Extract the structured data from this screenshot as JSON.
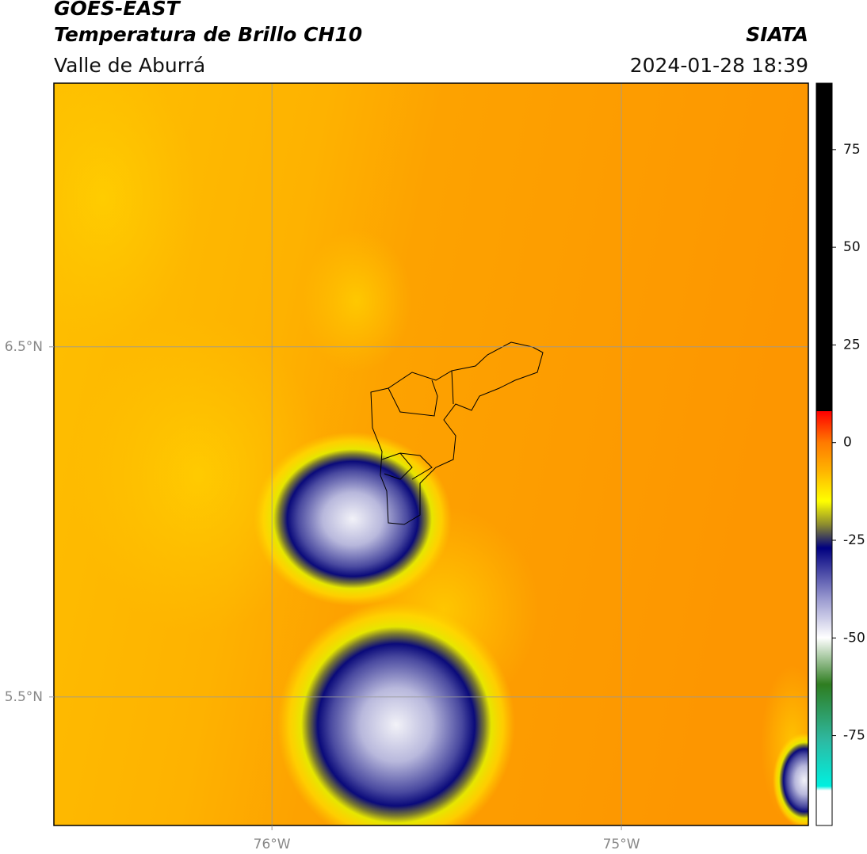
{
  "header": {
    "satellite": "GOES-EAST",
    "product": "Temperatura de Brillo CH10",
    "region": "Valle de Aburrá",
    "source": "SIATA",
    "datetime": "2024-01-28 18:39"
  },
  "map": {
    "xlim": [
      -76.624,
      -74.465
    ],
    "ylim": [
      5.133,
      7.253
    ],
    "xticks": [
      {
        "value": -76,
        "label": "76°W"
      },
      {
        "value": -75,
        "label": "75°W"
      }
    ],
    "yticks": [
      {
        "value": 6.5,
        "label": "6.5°N"
      },
      {
        "value": 5.5,
        "label": "5.5°N"
      }
    ],
    "grid": true
  },
  "colorbar": {
    "lim": [
      -98,
      92
    ],
    "ticks": [
      -75,
      -50,
      -25,
      0,
      25,
      50,
      75
    ]
  }
}
